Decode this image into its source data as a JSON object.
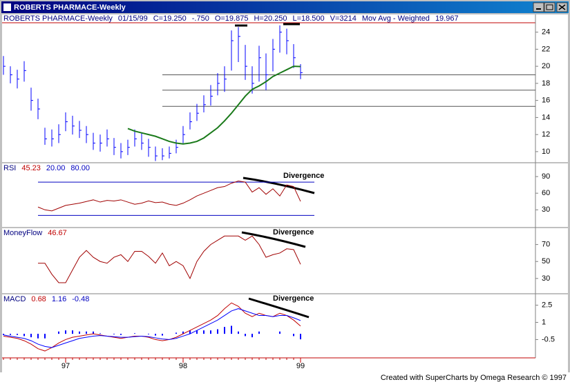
{
  "window": {
    "title": "ROBERTS PHARMACE-Weekly"
  },
  "footer": "Created with SuperCharts by Omega Research © 1997",
  "chart_data": [
    {
      "type": "ohlc",
      "header": [
        "ROBERTS PHARMACE-Weekly",
        "01/15/99",
        "C=19.250",
        "-.750",
        "O=19.875",
        "H=20.250",
        "L=18.500",
        "V=3214",
        "Mov Avg - Weighted",
        "19.967"
      ],
      "header_colors": [
        "#000080",
        "#000080",
        "#000080",
        "#000080",
        "#000080",
        "#000080",
        "#000080",
        "#000080",
        "#000080",
        "#000080"
      ],
      "ylim": [
        8.7,
        25.1
      ],
      "yticks": [
        10,
        12,
        14,
        16,
        18,
        20,
        22,
        24
      ],
      "color": "#0000ff",
      "high": [
        21.2,
        20,
        19.6,
        20.6,
        17.5,
        16.2,
        12.8,
        12.6,
        13.2,
        14.6,
        14.2,
        13.6,
        13,
        12.2,
        12,
        12.6,
        11.6,
        11,
        11.4,
        12.6,
        12.2,
        11.5,
        10.6,
        10.4,
        10.6,
        11.4,
        13,
        14.6,
        15.6,
        16.6,
        17.8,
        19.2,
        20,
        24.2,
        24.6,
        22.5,
        20,
        22.4,
        21.5,
        23.2,
        24.8,
        24.4,
        22.6,
        20.25
      ],
      "low": [
        19,
        18,
        17.4,
        18.2,
        14.8,
        13.8,
        10.8,
        10.6,
        11,
        12.4,
        12,
        11.6,
        11,
        10.2,
        10,
        10.6,
        9.6,
        9.2,
        9.6,
        10.6,
        10.2,
        9.4,
        8.9,
        9,
        9.2,
        9.8,
        11,
        12.6,
        13.6,
        14.6,
        15.4,
        16.6,
        17,
        19.5,
        20.5,
        18.4,
        16.8,
        18.2,
        17.2,
        19.4,
        21.6,
        21.4,
        19.8,
        18.5
      ],
      "close": [
        20,
        19,
        18.5,
        19.5,
        16,
        15,
        11.5,
        11.5,
        12,
        13.5,
        13,
        12.5,
        12,
        11,
        11,
        11.5,
        10.5,
        10,
        10.5,
        11.5,
        11,
        10.5,
        9.5,
        9.5,
        9.8,
        10.5,
        12,
        13.5,
        14.5,
        15.5,
        16.5,
        18,
        18.5,
        23,
        23.5,
        20,
        18,
        21,
        19,
        22,
        24,
        23,
        21,
        19.25
      ],
      "series": [
        {
          "name": "Mov Avg - Weighted",
          "color": "#1a7a1a",
          "values": [
            null,
            null,
            null,
            null,
            null,
            null,
            null,
            null,
            null,
            null,
            null,
            null,
            null,
            null,
            null,
            null,
            null,
            null,
            12.7,
            12.4,
            12.2,
            12,
            11.8,
            11.5,
            11.2,
            11,
            10.9,
            11,
            11.2,
            11.6,
            12.2,
            12.8,
            13.6,
            14.5,
            15.5,
            16.5,
            17.3,
            17.7,
            18.2,
            18.8,
            19.2,
            19.6,
            20,
            19.967
          ]
        }
      ],
      "levels": [
        19,
        17.2,
        15.3
      ],
      "level_color": "#555555",
      "level_start": 23,
      "annotations": []
    },
    {
      "type": "line",
      "header": [
        "RSI",
        "45.23",
        "20.00",
        "80.00"
      ],
      "header_colors": [
        "#000080",
        "#c00000",
        "#0000c0",
        "#0000c0"
      ],
      "ylim": [
        -2,
        115
      ],
      "yticks": [
        30,
        60,
        90
      ],
      "series": [
        {
          "name": "RSI",
          "color": "#a00000",
          "values": [
            null,
            null,
            null,
            null,
            null,
            35,
            30,
            28,
            33,
            38,
            40,
            42,
            45,
            48,
            44,
            47,
            46,
            48,
            44,
            40,
            42,
            46,
            43,
            44,
            40,
            38,
            42,
            48,
            55,
            60,
            65,
            70,
            72,
            78,
            82,
            80,
            62,
            70,
            58,
            68,
            55,
            75,
            72,
            45.23
          ]
        }
      ],
      "levels": [
        20,
        80
      ],
      "level_color": "#0000c0",
      "level_start": 5,
      "annotations": [
        "Divergence"
      ]
    },
    {
      "type": "line",
      "header": [
        "MoneyFlow",
        "46.67"
      ],
      "header_colors": [
        "#000080",
        "#c00000"
      ],
      "ylim": [
        12,
        90
      ],
      "yticks": [
        30,
        50,
        70
      ],
      "series": [
        {
          "name": "MoneyFlow",
          "color": "#a00000",
          "values": [
            null,
            null,
            null,
            null,
            null,
            48,
            48,
            35,
            25,
            25,
            40,
            55,
            63,
            55,
            50,
            48,
            55,
            58,
            50,
            62,
            62,
            56,
            48,
            60,
            45,
            50,
            45,
            30,
            50,
            62,
            70,
            75,
            80,
            80,
            80,
            75,
            80,
            70,
            55,
            58,
            60,
            65,
            64,
            46.67
          ]
        }
      ],
      "annotations": [
        "Divergence"
      ]
    },
    {
      "type": "macd",
      "header": [
        "MACD",
        "0.68",
        "1.16",
        "-0.48"
      ],
      "header_colors": [
        "#000080",
        "#c00000",
        "#0000c0",
        "#0000c0"
      ],
      "ylim": [
        -2.1,
        3.5
      ],
      "yticks": [
        -0.5,
        1,
        2.5
      ],
      "categories": [
        null,
        null,
        null,
        null,
        null,
        null,
        null,
        null,
        null,
        "97",
        null,
        null,
        null,
        null,
        null,
        null,
        null,
        null,
        null,
        null,
        null,
        null,
        null,
        null,
        null,
        null,
        "98",
        null,
        null,
        null,
        null,
        null,
        null,
        null,
        null,
        null,
        null,
        null,
        null,
        null,
        null,
        null,
        null,
        "99"
      ],
      "series": [
        {
          "name": "MACD",
          "color": "#c00000",
          "values": [
            -0.2,
            -0.3,
            -0.4,
            -0.6,
            -0.9,
            -1.3,
            -1.5,
            -1.2,
            -0.8,
            -0.5,
            -0.3,
            -0.2,
            -0.1,
            0,
            -0.1,
            -0.2,
            -0.3,
            -0.4,
            -0.3,
            -0.2,
            -0.2,
            -0.3,
            -0.5,
            -0.6,
            -0.5,
            -0.3,
            0,
            0.3,
            0.6,
            0.9,
            1.2,
            1.6,
            2.2,
            2.7,
            2.4,
            1.8,
            1.5,
            1.8,
            1.6,
            1.5,
            1.8,
            1.6,
            1.2,
            0.68
          ]
        },
        {
          "name": "MACDAvg",
          "color": "#0000ff",
          "values": [
            -0.1,
            -0.2,
            -0.3,
            -0.4,
            -0.6,
            -0.9,
            -1.1,
            -1.2,
            -1.0,
            -0.8,
            -0.6,
            -0.4,
            -0.3,
            -0.2,
            -0.15,
            -0.2,
            -0.25,
            -0.3,
            -0.3,
            -0.25,
            -0.2,
            -0.25,
            -0.35,
            -0.45,
            -0.5,
            -0.4,
            -0.2,
            0,
            0.3,
            0.6,
            0.9,
            1.2,
            1.6,
            2.0,
            2.2,
            2.0,
            1.8,
            1.6,
            1.6,
            1.5,
            1.6,
            1.6,
            1.4,
            1.16
          ]
        },
        {
          "name": "MACDDiff",
          "color": "#0000ff",
          "style": "histogram",
          "values": [
            -0.1,
            -0.1,
            -0.1,
            -0.2,
            -0.3,
            -0.4,
            -0.4,
            0,
            0.2,
            0.3,
            0.3,
            0.2,
            0.2,
            0.2,
            0.05,
            0,
            -0.05,
            -0.1,
            0,
            0.05,
            0,
            -0.05,
            -0.15,
            -0.15,
            0,
            0.1,
            0.2,
            0.3,
            0.3,
            0.3,
            0.3,
            0.4,
            0.6,
            0.7,
            0.2,
            -0.2,
            -0.3,
            0.2,
            0,
            0,
            0.2,
            0,
            -0.2,
            -0.48
          ]
        }
      ],
      "annotations": [
        "Divergence"
      ]
    }
  ]
}
